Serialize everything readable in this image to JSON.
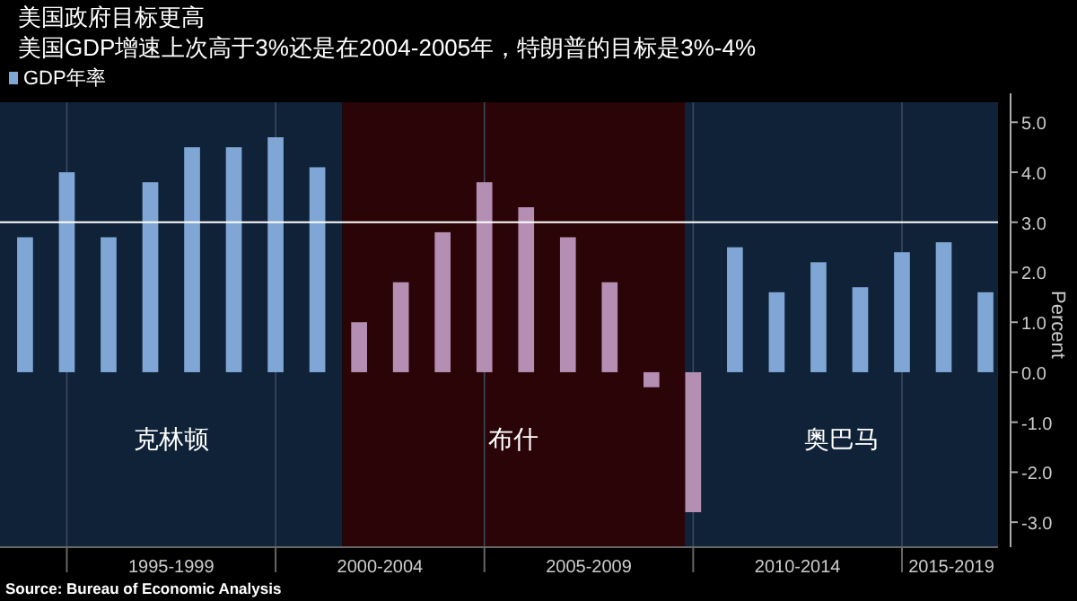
{
  "chart_data": {
    "type": "bar",
    "title": "美国政府目标更高",
    "subtitle": "美国GDP增速上次高于3%还是在2004-2005年，特朗普的目标是3%-4%",
    "ylabel": "Percent",
    "categories": [
      null,
      null,
      null,
      null,
      null,
      null,
      null,
      null,
      null,
      null,
      null,
      null,
      null,
      null,
      null,
      null,
      null,
      null,
      null,
      null,
      null,
      null,
      null,
      null
    ],
    "series": [
      {
        "name": "GDP年率",
        "color": "#7fa6d4",
        "values": [
          2.7,
          4.0,
          2.7,
          3.8,
          4.5,
          4.5,
          4.7,
          4.1,
          1.0,
          1.8,
          2.8,
          3.8,
          3.3,
          2.7,
          1.8,
          -0.3,
          -2.8,
          2.5,
          1.6,
          2.2,
          1.7,
          2.4,
          2.6,
          1.6
        ],
        "colors": [
          "#7fa6d4",
          "#7fa6d4",
          "#7fa6d4",
          "#7fa6d4",
          "#7fa6d4",
          "#7fa6d4",
          "#7fa6d4",
          "#7fa6d4",
          "#b58fb3",
          "#b58fb3",
          "#b58fb3",
          "#b58fb3",
          "#b58fb3",
          "#b58fb3",
          "#b58fb3",
          "#b58fb3",
          "#b58fb3",
          "#7fa6d4",
          "#7fa6d4",
          "#7fa6d4",
          "#7fa6d4",
          "#7fa6d4",
          "#7fa6d4",
          "#7fa6d4"
        ]
      }
    ],
    "ylim": [
      -3.5,
      5.4
    ],
    "yticks": [
      {
        "value": -3,
        "label": "-3.0"
      },
      {
        "value": -2,
        "label": "-2.0"
      },
      {
        "value": -1,
        "label": "-1.0"
      },
      {
        "value": 0,
        "label": "0.0"
      },
      {
        "value": 1,
        "label": "1.0"
      },
      {
        "value": 2,
        "label": "2.0"
      },
      {
        "value": 3,
        "label": "3.0"
      },
      {
        "value": 4,
        "label": "4.0"
      },
      {
        "value": 5,
        "label": "5.0"
      }
    ],
    "ref_lines": [
      {
        "axis": "y",
        "value": 3,
        "color": "#ffffff"
      }
    ],
    "grid": "x",
    "legend": "top left",
    "annotations": [
      "Source: Bureau of Economic Analysis",
      "克林顿",
      "布什",
      "奥巴马",
      {
        "text": "1995-1999"
      },
      {
        "text": "2000-2004"
      },
      {
        "text": "2005-2009"
      },
      {
        "text": "2010-2014"
      },
      {
        "text": "2015-2019"
      }
    ]
  }
}
